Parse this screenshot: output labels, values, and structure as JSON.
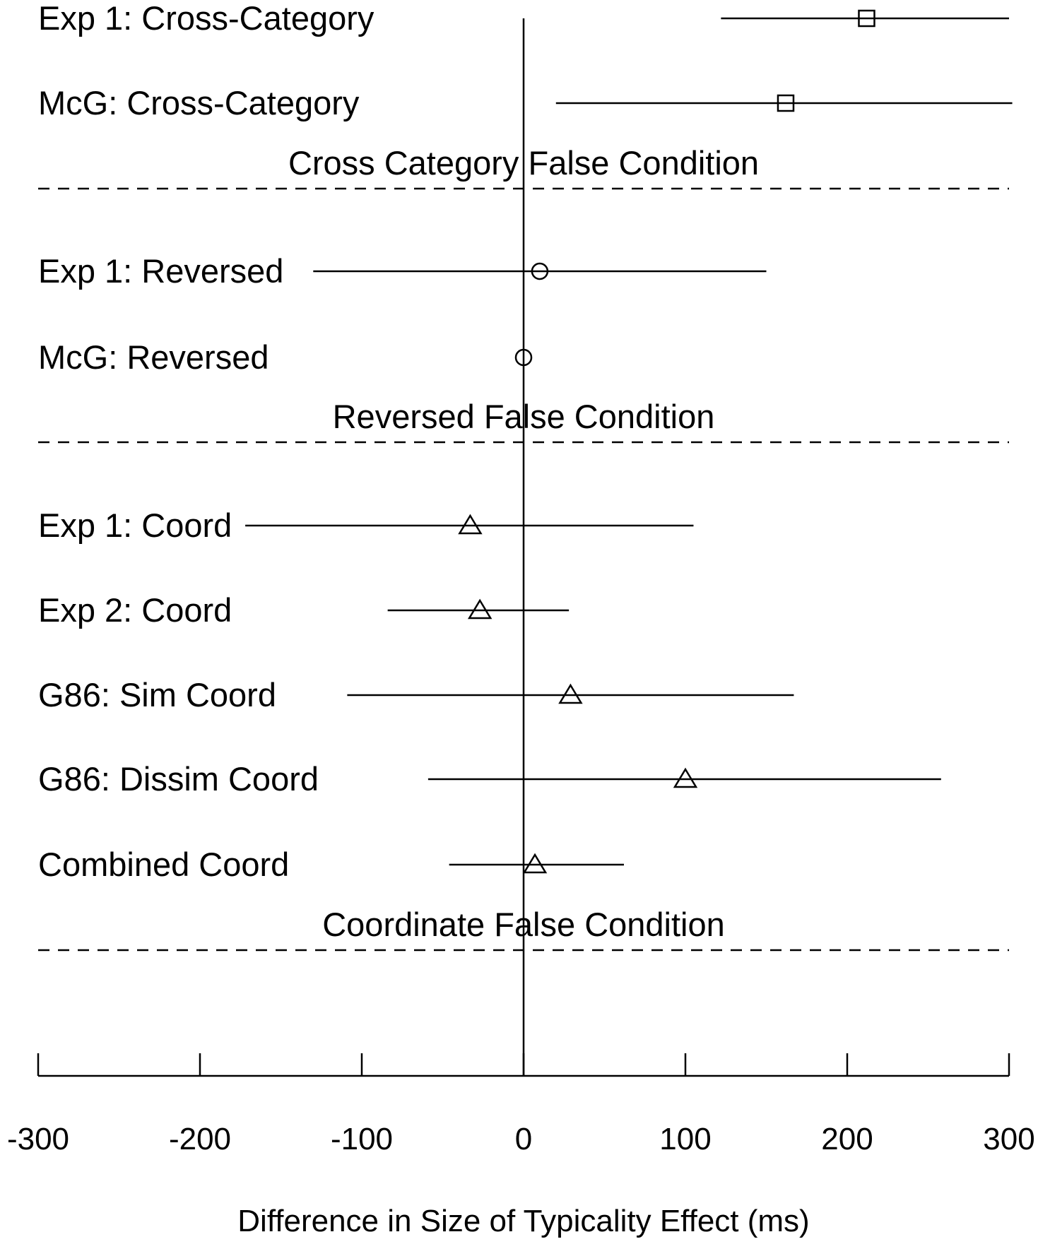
{
  "chart_data": {
    "type": "scatter",
    "subtype": "forest-plot",
    "xlabel": "Difference in Size of Typicality Effect (ms)",
    "xlim": [
      -300,
      300
    ],
    "xticks": [
      "-300",
      "-200",
      "-100",
      "0",
      "100",
      "200",
      "300"
    ],
    "reference_line_x": 0,
    "rows": [
      {
        "label": "Exp 1: Cross-Category",
        "estimate": 212,
        "ci": [
          122,
          300
        ],
        "marker": "square"
      },
      {
        "label": "McG: Cross-Category",
        "estimate": 162,
        "ci": [
          20,
          302
        ],
        "marker": "square"
      },
      {
        "separator": "Cross Category False Condition"
      },
      {
        "label": "Exp 1: Reversed",
        "estimate": 10,
        "ci": [
          -130,
          150
        ],
        "marker": "circle"
      },
      {
        "label": "McG: Reversed",
        "estimate": 0,
        "ci": [
          0,
          0
        ],
        "marker": "circle"
      },
      {
        "separator": "Reversed False Condition"
      },
      {
        "label": "Exp 1: Coord",
        "estimate": -33,
        "ci": [
          -172,
          105
        ],
        "marker": "triangle"
      },
      {
        "label": "Exp 2: Coord",
        "estimate": -27,
        "ci": [
          -84,
          28
        ],
        "marker": "triangle"
      },
      {
        "label": "G86: Sim Coord",
        "estimate": 29,
        "ci": [
          -109,
          167
        ],
        "marker": "triangle"
      },
      {
        "label": "G86: Dissim Coord",
        "estimate": 100,
        "ci": [
          -59,
          258
        ],
        "marker": "triangle"
      },
      {
        "label": "Combined Coord",
        "estimate": 7,
        "ci": [
          -46,
          62
        ],
        "marker": "triangle"
      },
      {
        "separator": "Coordinate False Condition"
      }
    ]
  }
}
